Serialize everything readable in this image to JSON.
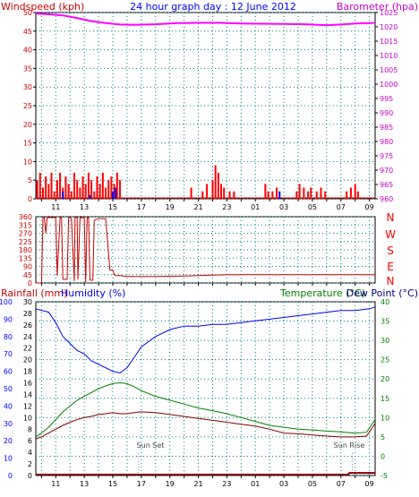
{
  "header": {
    "wind_label": "Windspeed (kph)",
    "title": "24 hour graph day : 12 June 2012",
    "baro_label": "Barometer (hpa)"
  },
  "bottom_header": {
    "rain_label": "Rainfall (mm)",
    "humidity_label": "Humidity (%)",
    "temp_label": "Temperature (°C)",
    "dew_label": "Dew Point (°C)"
  },
  "annotations": {
    "sunset": "Sun Set",
    "sunrise": "Sun Rise"
  },
  "colors": {
    "wind": "#ff0000",
    "gust": "#0000ff",
    "baro": "#ff00ff",
    "dir": "#cc0000",
    "rain": "#0000ff",
    "humidity": "#0000ff",
    "temp": "#008000",
    "dew": "#800000",
    "rain_line": "#800000",
    "grid": "#008080",
    "header_left": "#cc0000",
    "header_title": "#0000ff",
    "header_right": "#cc00cc",
    "temp_label": "#008000",
    "dew_label": "#000080",
    "compass": "#ff0000",
    "axis_text_left_top": "#cc0000",
    "axis_text_right_top": "#cc00cc",
    "axis_text_left_bottom": "#0000ff",
    "axis_text_right_bottom": "#008000"
  },
  "chart_data": [
    {
      "type": "bar",
      "title": "24 hour graph day : 12 June 2012",
      "x_ticks": [
        "11",
        "13",
        "15",
        "17",
        "19",
        "21",
        "23",
        "01",
        "03",
        "05",
        "07",
        "09"
      ],
      "x_range_hours": [
        9.6,
        33.4
      ],
      "y_left": {
        "label": "Windspeed (kph)",
        "ticks": [
          0,
          5,
          10,
          15,
          20,
          25,
          30,
          35,
          40,
          45,
          50
        ],
        "range": [
          0,
          50
        ]
      },
      "y_right": {
        "label": "Barometer (hpa)",
        "ticks": [
          960,
          965,
          970,
          975,
          980,
          985,
          990,
          995,
          1000,
          1005,
          1010,
          1015,
          1020,
          1025
        ],
        "range": [
          960,
          1025
        ]
      },
      "grid": true,
      "series": [
        {
          "name": "Windspeed",
          "kind": "bars",
          "x": [
            9.7,
            9.9,
            10.1,
            10.3,
            10.5,
            10.7,
            10.9,
            11.1,
            11.3,
            11.5,
            11.7,
            11.9,
            12.1,
            12.3,
            12.5,
            12.7,
            12.9,
            13.1,
            13.3,
            13.5,
            13.7,
            13.9,
            14.1,
            14.3,
            14.5,
            14.7,
            14.9,
            15.1,
            15.3,
            15.5,
            20.5,
            21.3,
            21.6,
            22.0,
            22.2,
            22.4,
            22.6,
            22.8,
            23.2,
            23.5,
            25.7,
            25.9,
            26.2,
            26.5,
            27.9,
            28.1,
            28.4,
            28.7,
            28.9,
            29.3,
            29.6,
            29.9,
            31.4,
            31.7,
            32.0,
            32.2
          ],
          "values": [
            5,
            7,
            3,
            6,
            4,
            7,
            2,
            5,
            7,
            3,
            6,
            4,
            2,
            7,
            5,
            3,
            6,
            4,
            7,
            5,
            2,
            6,
            4,
            7,
            3,
            5,
            6,
            4,
            7,
            5,
            3,
            2,
            4,
            5,
            9,
            7,
            4,
            3,
            2,
            2,
            4,
            2,
            2,
            3,
            2,
            4,
            3,
            2,
            3,
            2,
            3,
            2,
            2,
            3,
            4,
            2
          ]
        },
        {
          "name": "Gust",
          "kind": "bars",
          "x": [
            11.5,
            13.4,
            15.0,
            15.2,
            26.7
          ],
          "values": [
            2,
            1,
            2,
            3,
            2
          ]
        },
        {
          "name": "Barometer",
          "kind": "line",
          "x": [
            9.6,
            10.5,
            11.5,
            12.5,
            13.5,
            14.5,
            15.5,
            16.5,
            18.0,
            19.5,
            21.0,
            22.5,
            24.0,
            25.5,
            27.0,
            28.5,
            30.0,
            31.0,
            32.0,
            33.4
          ],
          "values": [
            1024.6,
            1024.4,
            1024.0,
            1023.1,
            1022.0,
            1021.3,
            1020.8,
            1020.7,
            1020.9,
            1021.3,
            1021.4,
            1021.4,
            1021.2,
            1021.1,
            1021.0,
            1020.9,
            1020.6,
            1020.8,
            1021.2,
            1021.4
          ]
        }
      ]
    },
    {
      "type": "line",
      "x_range_hours": [
        9.6,
        33.4
      ],
      "y_left": {
        "ticks": [
          0,
          45,
          90,
          135,
          180,
          225,
          270,
          315,
          360
        ],
        "range": [
          0,
          360
        ]
      },
      "y_right_labels": [
        "N",
        "W",
        "S",
        "E",
        "N"
      ],
      "grid": true,
      "series": [
        {
          "name": "Wind direction",
          "x": [
            9.6,
            10.0,
            10.1,
            10.2,
            10.3,
            10.4,
            10.6,
            11.0,
            11.1,
            11.3,
            11.4,
            11.5,
            11.8,
            11.9,
            12.0,
            12.1,
            12.3,
            12.35,
            12.5,
            12.55,
            12.7,
            13.0,
            13.1,
            13.2,
            13.3,
            13.4,
            13.6,
            13.7,
            14.0,
            14.5,
            14.8,
            15.0,
            15.1,
            15.2,
            15.4,
            15.5,
            16.0,
            18.0,
            20.0,
            23.0,
            33.4
          ],
          "values": [
            0,
            0,
            355,
            355,
            270,
            355,
            355,
            355,
            40,
            355,
            355,
            20,
            20,
            355,
            355,
            350,
            10,
            355,
            355,
            20,
            355,
            355,
            5,
            355,
            355,
            15,
            15,
            340,
            350,
            350,
            70,
            70,
            45,
            40,
            40,
            40,
            35,
            35,
            38,
            45,
            45
          ]
        }
      ]
    },
    {
      "type": "line",
      "x_range_hours": [
        9.6,
        33.4
      ],
      "y_left_outer": {
        "label": "Humidity (%)",
        "ticks": [
          0,
          10,
          20,
          30,
          40,
          50,
          60,
          70,
          80,
          90,
          100
        ],
        "range": [
          0,
          100
        ]
      },
      "y_left_inner": {
        "label": "Rainfall (mm)",
        "ticks": [
          0,
          2,
          4,
          6,
          8,
          10,
          12,
          14,
          16,
          18,
          20,
          22,
          24,
          26,
          28,
          30
        ],
        "range": [
          0,
          30
        ]
      },
      "y_right": {
        "label": "Temperature (°C)",
        "ticks": [
          -5,
          0,
          5,
          10,
          15,
          20,
          25,
          30,
          35,
          40
        ],
        "range": [
          -5,
          40
        ]
      },
      "grid": true,
      "series": [
        {
          "name": "Humidity",
          "x": [
            9.6,
            10.0,
            10.5,
            11.0,
            11.5,
            12.0,
            12.5,
            13.0,
            13.5,
            14.0,
            14.5,
            15.0,
            15.5,
            16.0,
            16.5,
            17.0,
            18.0,
            19.0,
            20.0,
            21.0,
            22.0,
            23.0,
            24.0,
            25.0,
            26.0,
            27.0,
            28.0,
            29.0,
            30.0,
            31.0,
            32.0,
            33.0,
            33.4
          ],
          "values": [
            96,
            95,
            94,
            88,
            80,
            76,
            72,
            70,
            66,
            64,
            62,
            60,
            59,
            62,
            68,
            74,
            80,
            84,
            86,
            86,
            87,
            87,
            88,
            89,
            90,
            91,
            92,
            93,
            94,
            95,
            95,
            96,
            97
          ]
        },
        {
          "name": "Temperature",
          "x": [
            9.6,
            10.0,
            10.5,
            11.0,
            11.5,
            12.0,
            12.5,
            13.0,
            13.5,
            14.0,
            14.5,
            15.0,
            15.5,
            16.0,
            16.5,
            17.0,
            18.0,
            19.0,
            20.0,
            21.0,
            22.0,
            23.0,
            24.0,
            25.0,
            26.0,
            27.0,
            28.0,
            29.0,
            30.0,
            31.0,
            32.0,
            32.8,
            33.4
          ],
          "values": [
            5.0,
            6.0,
            7.5,
            9.5,
            11.5,
            13.0,
            14.5,
            15.5,
            16.5,
            17.5,
            18.2,
            18.8,
            19.0,
            18.8,
            18.0,
            17.0,
            15.5,
            14.5,
            13.5,
            12.5,
            11.8,
            11.0,
            10.0,
            9.0,
            8.0,
            7.5,
            7.0,
            6.8,
            6.5,
            6.3,
            6.0,
            6.2,
            9.5
          ]
        },
        {
          "name": "Dew Point",
          "x": [
            9.6,
            10.0,
            10.5,
            11.0,
            11.5,
            12.0,
            12.5,
            13.0,
            13.5,
            14.0,
            14.5,
            15.0,
            15.5,
            16.0,
            16.5,
            17.0,
            18.0,
            19.0,
            20.0,
            21.0,
            22.0,
            23.0,
            24.0,
            25.0,
            26.0,
            27.0,
            28.0,
            29.0,
            30.0,
            31.0,
            32.0,
            32.8,
            33.4
          ],
          "values": [
            4.5,
            5.0,
            6.0,
            7.0,
            8.0,
            8.8,
            9.5,
            10.0,
            10.3,
            10.8,
            11.0,
            11.3,
            11.0,
            11.0,
            11.3,
            11.5,
            11.3,
            10.8,
            10.3,
            9.8,
            9.3,
            8.8,
            8.3,
            7.8,
            7.0,
            6.0,
            5.8,
            5.5,
            5.2,
            5.0,
            5.0,
            5.2,
            8.5
          ]
        },
        {
          "name": "Rainfall",
          "x": [
            9.6,
            31.5,
            31.6,
            33.4
          ],
          "values": [
            0,
            0,
            0.3,
            0.3
          ]
        }
      ]
    }
  ]
}
